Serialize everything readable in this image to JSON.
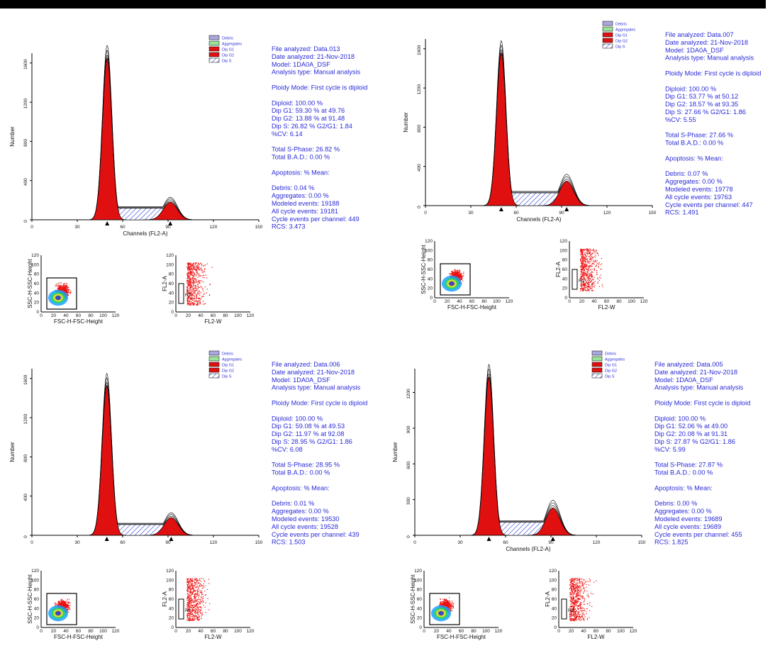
{
  "colors": {
    "g1": "#e01010",
    "g2": "#e01010",
    "debris": "#a9a9e0",
    "agg": "#9be39b",
    "s_hatch": "#2b3fd0",
    "text": "#2a2ad8"
  },
  "chart_data": [
    {
      "type": "area",
      "title": "",
      "xlabel": "Channels (FL2-A)",
      "ylabel": "Number",
      "xlim": [
        0,
        150
      ],
      "ylim": [
        0,
        1700
      ],
      "xticks": [
        "0",
        "30",
        "60",
        "90",
        "120",
        "150"
      ],
      "yticks": [
        "0",
        "400",
        "800",
        "1200",
        "1600"
      ],
      "g1_peak": {
        "x": 49.76,
        "height": 1650
      },
      "g2_peak": {
        "x": 91.48,
        "height": 180
      },
      "s_level": 120,
      "legend": [
        "Debris",
        "Aggregates",
        "Dip G1",
        "Dip G2",
        "Dip S"
      ],
      "info": [
        "File analyzed: Data.013",
        "Date analyzed: 21-Nov-2018",
        "Model: 1DA0A_DSF",
        "Analysis type: Manual analysis",
        "",
        "Ploidy Mode: First cycle is diploid",
        "",
        "Diploid: 100.00 %",
        "   Dip G1: 59.30 % at 49.76",
        "   Dip G2: 13.88 % at 91.48",
        "   Dip S: 26.82 %    G2/G1: 1.84",
        "   %CV: 6.14",
        "",
        "Total S-Phase: 26.82 %",
        "Total B.A.D.: 0.00 %",
        "",
        "Apoptosis:  %    Mean:",
        "",
        "Debris: 0.04 %",
        "Aggregates: 0.00 %",
        "Modeled events: 19188",
        "All cycle events: 19181",
        "Cycle events per channel: 449",
        "RCS: 3.473"
      ],
      "scatter1": {
        "xlabel": "FSC-H-FSC-Height",
        "ylabel": "SSC-H-SSC-Height",
        "ticks": [
          "0",
          "20",
          "40",
          "60",
          "80",
          "100",
          "120"
        ]
      },
      "scatter2": {
        "xlabel": "FL2-W",
        "ylabel": "FL2-A",
        "ticks": [
          "0",
          "20",
          "40",
          "60",
          "80",
          "100",
          "120"
        ],
        "gate": "R2"
      }
    },
    {
      "type": "area",
      "title": "",
      "xlabel": "Channels (FL2-A)",
      "ylabel": "Number",
      "xlim": [
        0,
        150
      ],
      "ylim": [
        0,
        1700
      ],
      "xticks": [
        "0",
        "30",
        "60",
        "90",
        "120",
        "150"
      ],
      "yticks": [
        "0",
        "400",
        "800",
        "1200",
        "1600"
      ],
      "g1_peak": {
        "x": 50.12,
        "height": 1560
      },
      "g2_peak": {
        "x": 93.35,
        "height": 250
      },
      "s_level": 130,
      "legend": [
        "Debris",
        "Aggregates",
        "Dip G1",
        "Dip G2",
        "Dip S"
      ],
      "info": [
        "File analyzed: Data.007",
        "Date analyzed: 21-Nov-2018",
        "Model: 1DA0A_DSF",
        "Analysis type: Manual analysis",
        "",
        "Ploidy Mode: First cycle is diploid",
        "",
        "Diploid: 100.00 %",
        "   Dip G1: 53.77 % at 50.12",
        "   Dip G2: 18.57 % at 93.35",
        "   Dip S: 27.66 %    G2/G1: 1.86",
        "   %CV: 5.55",
        "",
        "Total S-Phase: 27.66 %",
        "Total B.A.D.: 0.00 %",
        "",
        "Apoptosis:  %    Mean:",
        "",
        "Debris: 0.07 %",
        "Aggregates: 0.00 %",
        "Modeled events: 19778",
        "All cycle events: 19763",
        "Cycle events per channel: 447",
        "RCS: 1.491"
      ],
      "scatter1": {
        "xlabel": "FSC-H-FSC-Height",
        "ylabel": "SSC-H-SSC-Height",
        "ticks": [
          "0",
          "20",
          "40",
          "60",
          "80",
          "100",
          "120"
        ]
      },
      "scatter2": {
        "xlabel": "FL2-W",
        "ylabel": "FL2-A",
        "ticks": [
          "0",
          "20",
          "40",
          "60",
          "80",
          "100",
          "120"
        ],
        "gate": "R2"
      }
    },
    {
      "type": "area",
      "title": "",
      "xlabel": "",
      "ylabel": "Number",
      "xlim": [
        0,
        150
      ],
      "ylim": [
        0,
        1700
      ],
      "xticks": [
        "0",
        "30",
        "60",
        "90",
        "120",
        "150"
      ],
      "yticks": [
        "0",
        "400",
        "800",
        "1200",
        "1600"
      ],
      "g1_peak": {
        "x": 49.53,
        "height": 1530
      },
      "g2_peak": {
        "x": 92.08,
        "height": 180
      },
      "s_level": 110,
      "legend": [
        "Debris",
        "Aggregates",
        "Dip G1",
        "Dip G2",
        "Dip S"
      ],
      "info": [
        "File analyzed: Data.006",
        "Date analyzed: 21-Nov-2018",
        "Model: 1DA0A_DSF",
        "Analysis type: Manual analysis",
        "",
        "Ploidy Mode: First cycle is diploid",
        "",
        "Diploid: 100.00 %",
        "   Dip G1: 59.08 % at 49.53",
        "   Dip G2: 11.97 % at 92.08",
        "   Dip S: 28.95 %    G2/G1: 1.86",
        "   %CV: 6.08",
        "",
        "Total S-Phase: 28.95 %",
        "Total B.A.D.: 0.00 %",
        "",
        "Apoptosis:  %    Mean:",
        "",
        "Debris: 0.01 %",
        "Aggregates: 0.00 %",
        "Modeled events: 19530",
        "All cycle events: 19528",
        "Cycle events per channel: 439",
        "RCS: 1.503"
      ],
      "scatter1": {
        "xlabel": "FSC-H-FSC-Height",
        "ylabel": "SSC-H-SSC-Height",
        "ticks": [
          "0",
          "20",
          "40",
          "60",
          "80",
          "100",
          "120"
        ]
      },
      "scatter2": {
        "xlabel": "FL2-W",
        "ylabel": "FL2-A",
        "ticks": [
          "0",
          "20",
          "40",
          "60",
          "80",
          "100",
          "120"
        ],
        "gate": "R2"
      }
    },
    {
      "type": "area",
      "title": "",
      "xlabel": "Channels (FL2-A)",
      "ylabel": "Number",
      "xlim": [
        0,
        150
      ],
      "ylim": [
        0,
        1400
      ],
      "xticks": [
        "0",
        "30",
        "60",
        "90",
        "120",
        "150"
      ],
      "yticks": [
        "0",
        "300",
        "600",
        "900",
        "1200"
      ],
      "g1_peak": {
        "x": 49.0,
        "height": 1330
      },
      "g2_peak": {
        "x": 91.31,
        "height": 230
      },
      "s_level": 110,
      "legend": [
        "Debris",
        "Aggregates",
        "Dip G1",
        "Dip G2",
        "Dip S"
      ],
      "info": [
        "File analyzed: Data.005",
        "Date analyzed: 21-Nov-2018",
        "Model: 1DA0A_DSF",
        "Analysis type: Manual analysis",
        "",
        "Ploidy Mode: First cycle is diploid",
        "",
        "Diploid: 100.00 %",
        "   Dip G1: 52.06 % at 49.00",
        "   Dip G2: 20.08 % at 91.31",
        "   Dip S: 27.87 %    G2/G1: 1.86",
        "   %CV: 5.99",
        "",
        "Total S-Phase: 27.87 %",
        "Total B.A.D.: 0.00 %",
        "",
        "Apoptosis:  %    Mean:",
        "",
        "Debris: 0.00 %",
        "Aggregates: 0.00 %",
        "Modeled events: 19689",
        "All cycle events: 19689",
        "Cycle events per channel: 455",
        "RCS: 1.825"
      ],
      "scatter1": {
        "xlabel": "FSC-H-FSC-Height",
        "ylabel": "SSC-H-SSC-Height",
        "ticks": [
          "0",
          "20",
          "40",
          "60",
          "80",
          "100",
          "120"
        ]
      },
      "scatter2": {
        "xlabel": "FL2-W",
        "ylabel": "FL2-A",
        "ticks": [
          "0",
          "20",
          "40",
          "60",
          "80",
          "100",
          "120"
        ],
        "gate": "R2"
      }
    }
  ]
}
